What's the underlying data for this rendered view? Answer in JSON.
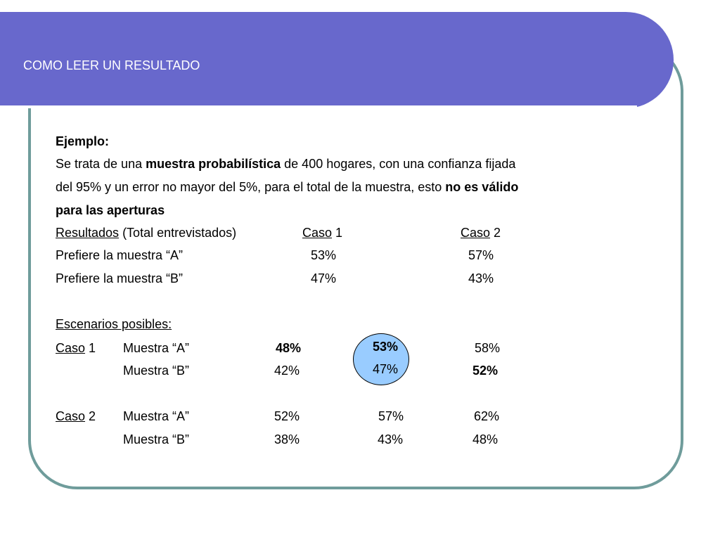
{
  "slide": {
    "title": "COMO LEER UN RESULTADO",
    "example_heading": "Ejemplo:",
    "paragraph": {
      "l1_a": "Se trata de una ",
      "l1_b": "muestra probabilística",
      "l1_c": " de 400 hogares, con una confianza fijada",
      "l2_a": "del 95%  y un error no mayor del 5%, para el total de la muestra, esto ",
      "l2_b": "no es válido",
      "l3": "para las aperturas"
    },
    "results": {
      "label": "Resultados",
      "label_suffix": " (Total entrevistados)",
      "case_word": "Caso",
      "case1_num": "1",
      "case2_num": "2",
      "rows": [
        {
          "label": "Prefiere la muestra “A”",
          "case1": "53%",
          "case2": "57%"
        },
        {
          "label": "Prefiere la muestra “B”",
          "case1": "47%",
          "case2": "43%"
        }
      ]
    },
    "scenarios": {
      "heading": "Escenarios posibles:",
      "case_word": "Caso",
      "case1": {
        "num": "1",
        "a_label": "Muestra “A”",
        "a_values": [
          "48%",
          "53%",
          "58%"
        ],
        "b_label": "Muestra “B”",
        "b_values": [
          "42%",
          "47%",
          "52%"
        ]
      },
      "case2": {
        "num": "2",
        "a_label": "Muestra “A”",
        "a_values": [
          "52%",
          "57%",
          "62%"
        ],
        "b_label": "Muestra “B”",
        "b_values": [
          "38%",
          "43%",
          "48%"
        ]
      }
    },
    "colors": {
      "banner": "#6868cc",
      "frame": "#6f9c9b",
      "highlight_oval": "#99ccff"
    }
  }
}
